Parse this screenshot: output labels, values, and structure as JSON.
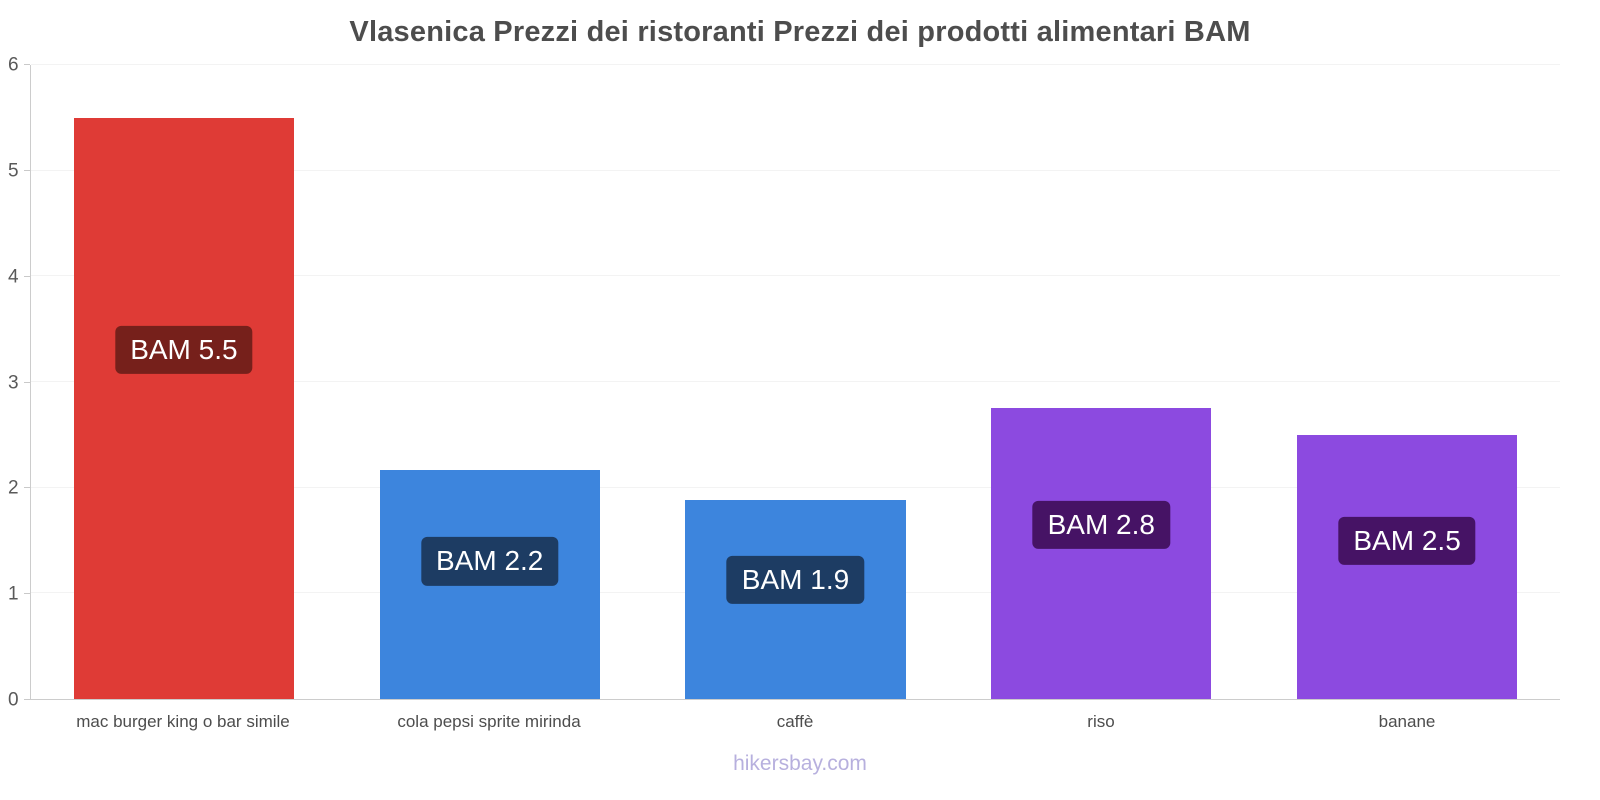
{
  "chart": {
    "title": "Vlasenica Prezzi dei ristoranti Prezzi dei prodotti alimentari BAM",
    "footer": "hikersbay.com"
  },
  "chart_data": {
    "type": "bar",
    "title": "Vlasenica Prezzi dei ristoranti Prezzi dei prodotti alimentari BAM",
    "categories": [
      "mac burger king o bar simile",
      "cola pepsi sprite mirinda",
      "caffè",
      "riso",
      "banane"
    ],
    "values": [
      5.5,
      2.17,
      1.88,
      2.75,
      2.5
    ],
    "value_labels": [
      "BAM 5.5",
      "BAM 2.2",
      "BAM 1.9",
      "BAM 2.8",
      "BAM 2.5"
    ],
    "bar_colors": [
      "#df3b36",
      "#3d85dd",
      "#3d85dd",
      "#8c4ae0",
      "#8c4ae0"
    ],
    "label_bg_colors": [
      "#76201b",
      "#1d3c63",
      "#1d3c63",
      "#461365",
      "#461365"
    ],
    "currency": "BAM",
    "xlabel": "",
    "ylabel": "",
    "ylim": [
      0,
      6
    ],
    "yticks": [
      0,
      1,
      2,
      3,
      4,
      5,
      6
    ],
    "grid": true,
    "legend": false,
    "legend_position": "none"
  }
}
